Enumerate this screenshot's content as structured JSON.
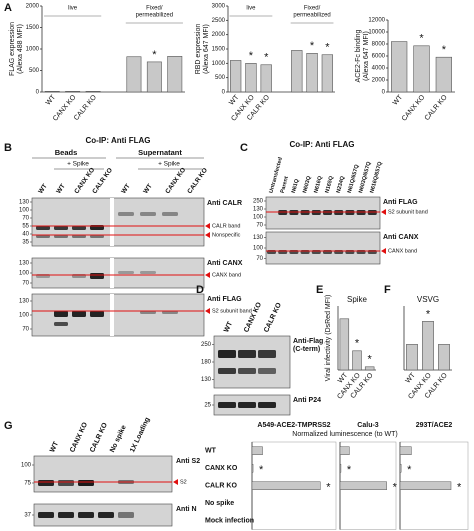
{
  "panel_a": {
    "letter": "A"
  },
  "panel_b": {
    "letter": "B",
    "title": "Co-IP: Anti FLAG",
    "groups": [
      "Beads",
      "Supernatant"
    ],
    "treatment": [
      "+ Spike",
      "+ Spike"
    ],
    "lanes": [
      "WT",
      "WT",
      "CANX KO",
      "CALR KO",
      "WT",
      "WT",
      "CANX KO",
      "CALR KO"
    ],
    "blots": [
      {
        "antibody": [
          "Anti CALR"
        ],
        "markers": [
          130,
          100,
          70,
          55,
          40,
          35
        ],
        "bands": [
          "CALR band",
          "Nonspecific"
        ]
      },
      {
        "antibody": [
          "Anti CANX"
        ],
        "markers": [
          130,
          100,
          70
        ],
        "bands": [
          "CANX band"
        ]
      },
      {
        "antibody": [
          "Anti FLAG"
        ],
        "markers": [
          130,
          100,
          70
        ],
        "bands": [
          "S2 subunit band"
        ]
      }
    ]
  },
  "panel_c": {
    "letter": "C",
    "title": "Co-IP: Anti FLAG",
    "lanes": [
      "Untransfected",
      "Parent",
      "N61Q",
      "N603Q",
      "N616Q",
      "N165Q",
      "N234Q",
      "N61Q/657Q",
      "N603Q/657Q",
      "N616Q/657Q"
    ],
    "blots": [
      {
        "antibody": [
          "Anti FLAG"
        ],
        "markers": [
          250,
          130,
          100,
          70
        ],
        "bands": [
          "S2 subunit band"
        ]
      },
      {
        "antibody": [
          "Anti CANX"
        ],
        "markers": [
          130,
          100,
          70
        ],
        "bands": [
          "CANX band"
        ]
      }
    ]
  },
  "panel_d": {
    "letter": "D",
    "lanes": [
      "WT",
      "CANX KO",
      "CALR KO"
    ],
    "blots": [
      {
        "antibody": [
          "Anti-Flag",
          "(C-term)"
        ],
        "markers": [
          250,
          180,
          130
        ]
      },
      {
        "antibody": [
          "Anti P24"
        ],
        "markers": [
          25
        ]
      }
    ]
  },
  "panel_e": {
    "letter": "E"
  },
  "panel_f": {
    "letter": "F"
  },
  "panel_g": {
    "letter": "G",
    "lanes": [
      "WT",
      "CANX KO",
      "CALR KO",
      "No spike",
      "1X Loading"
    ],
    "blots": [
      {
        "antibody": [
          "Anti S2"
        ],
        "markers": [
          100,
          75
        ],
        "bands": [
          "S2"
        ]
      },
      {
        "antibody": [
          "Anti N"
        ],
        "markers": [
          37
        ]
      }
    ],
    "xlabel": "Normalized luminescence (to WT)",
    "rows": [
      "WT",
      "CANX KO",
      "CALR KO",
      "No spike",
      "Mock infection"
    ]
  },
  "chart_data": [
    {
      "type": "bar",
      "ylabel": [
        "FLAG expression",
        "(Alexa 488 MFI)"
      ],
      "categories": [
        "WT",
        "CANX KO",
        "CALR KO",
        null,
        null,
        null
      ],
      "values": [
        15,
        15,
        15,
        820,
        700,
        830
      ],
      "annotations": [
        null,
        null,
        null,
        null,
        "*",
        null
      ],
      "color": "#c8c8c8",
      "group_labels": [
        [
          "live"
        ],
        [
          "Fixed/",
          "permeabilized"
        ]
      ],
      "ylim": [
        0,
        2000
      ],
      "yticks": [
        0,
        500,
        1000,
        1500,
        2000
      ]
    },
    {
      "type": "bar",
      "ylabel": [
        "RBD expression",
        "(Alexa 647 MFI)"
      ],
      "categories": [
        "WT",
        "CANX KO",
        "CALR KO",
        null,
        null,
        null
      ],
      "values": [
        1100,
        1000,
        950,
        1450,
        1350,
        1300
      ],
      "annotations": [
        null,
        "*",
        "*",
        null,
        "*",
        "*"
      ],
      "color": "#c8c8c8",
      "group_labels": [
        [
          "live"
        ],
        [
          "Fixed/",
          "permeabilized"
        ]
      ],
      "ylim": [
        0,
        3000
      ],
      "yticks": [
        0,
        500,
        1000,
        1500,
        2000,
        2500,
        3000
      ]
    },
    {
      "type": "bar",
      "ylabel": [
        "ACE2-Fc binding",
        "(Alexa 647 MFI)"
      ],
      "categories": [
        "WT",
        "CANX KO",
        "CALR KO"
      ],
      "values": [
        8400,
        7700,
        5800
      ],
      "annotations": [
        null,
        "*",
        "*"
      ],
      "color": "#c8c8c8",
      "ylim": [
        0,
        12000
      ],
      "yticks": [
        0,
        2000,
        4000,
        6000,
        8000,
        10000,
        12000
      ]
    },
    {
      "type": "bar",
      "title": "Spike",
      "ylabel": [
        "Viral infectivity (DsRed MFI)"
      ],
      "categories": [
        "WT",
        "CANX KO",
        "CALR KO"
      ],
      "values": [
        8,
        3,
        0.5
      ],
      "annotations": [
        null,
        "*",
        "*"
      ],
      "color": "#c8c8c8",
      "ylim": [
        0,
        10
      ]
    },
    {
      "type": "bar",
      "title": "VSVG",
      "categories": [
        "WT",
        "CANX KO",
        "CALR KO"
      ],
      "values": [
        10,
        19,
        10
      ],
      "annotations": [
        null,
        "*",
        null
      ],
      "color": "#c8c8c8",
      "ylim": [
        0,
        25
      ]
    },
    {
      "type": "hbar",
      "title": "A549-ACE2-TMPRSS2",
      "values": [
        1,
        0.1,
        6.5,
        0,
        0
      ],
      "annotations": [
        null,
        "*",
        "*",
        null,
        null
      ],
      "color": "#c8c8c8",
      "xlim": [
        0,
        8
      ]
    },
    {
      "type": "hbar",
      "title": "Calu-3",
      "values": [
        1,
        0.1,
        5,
        0,
        0
      ],
      "annotations": [
        null,
        "*",
        "*",
        null,
        null
      ],
      "color": "#c8c8c8",
      "xlim": [
        0,
        6
      ]
    },
    {
      "type": "hbar",
      "title": "293T/ACE2",
      "values": [
        1,
        0.1,
        4.5,
        0,
        0
      ],
      "annotations": [
        null,
        "*",
        "*",
        null,
        null
      ],
      "color": "#c8c8c8",
      "xlim": [
        0,
        6
      ]
    }
  ]
}
